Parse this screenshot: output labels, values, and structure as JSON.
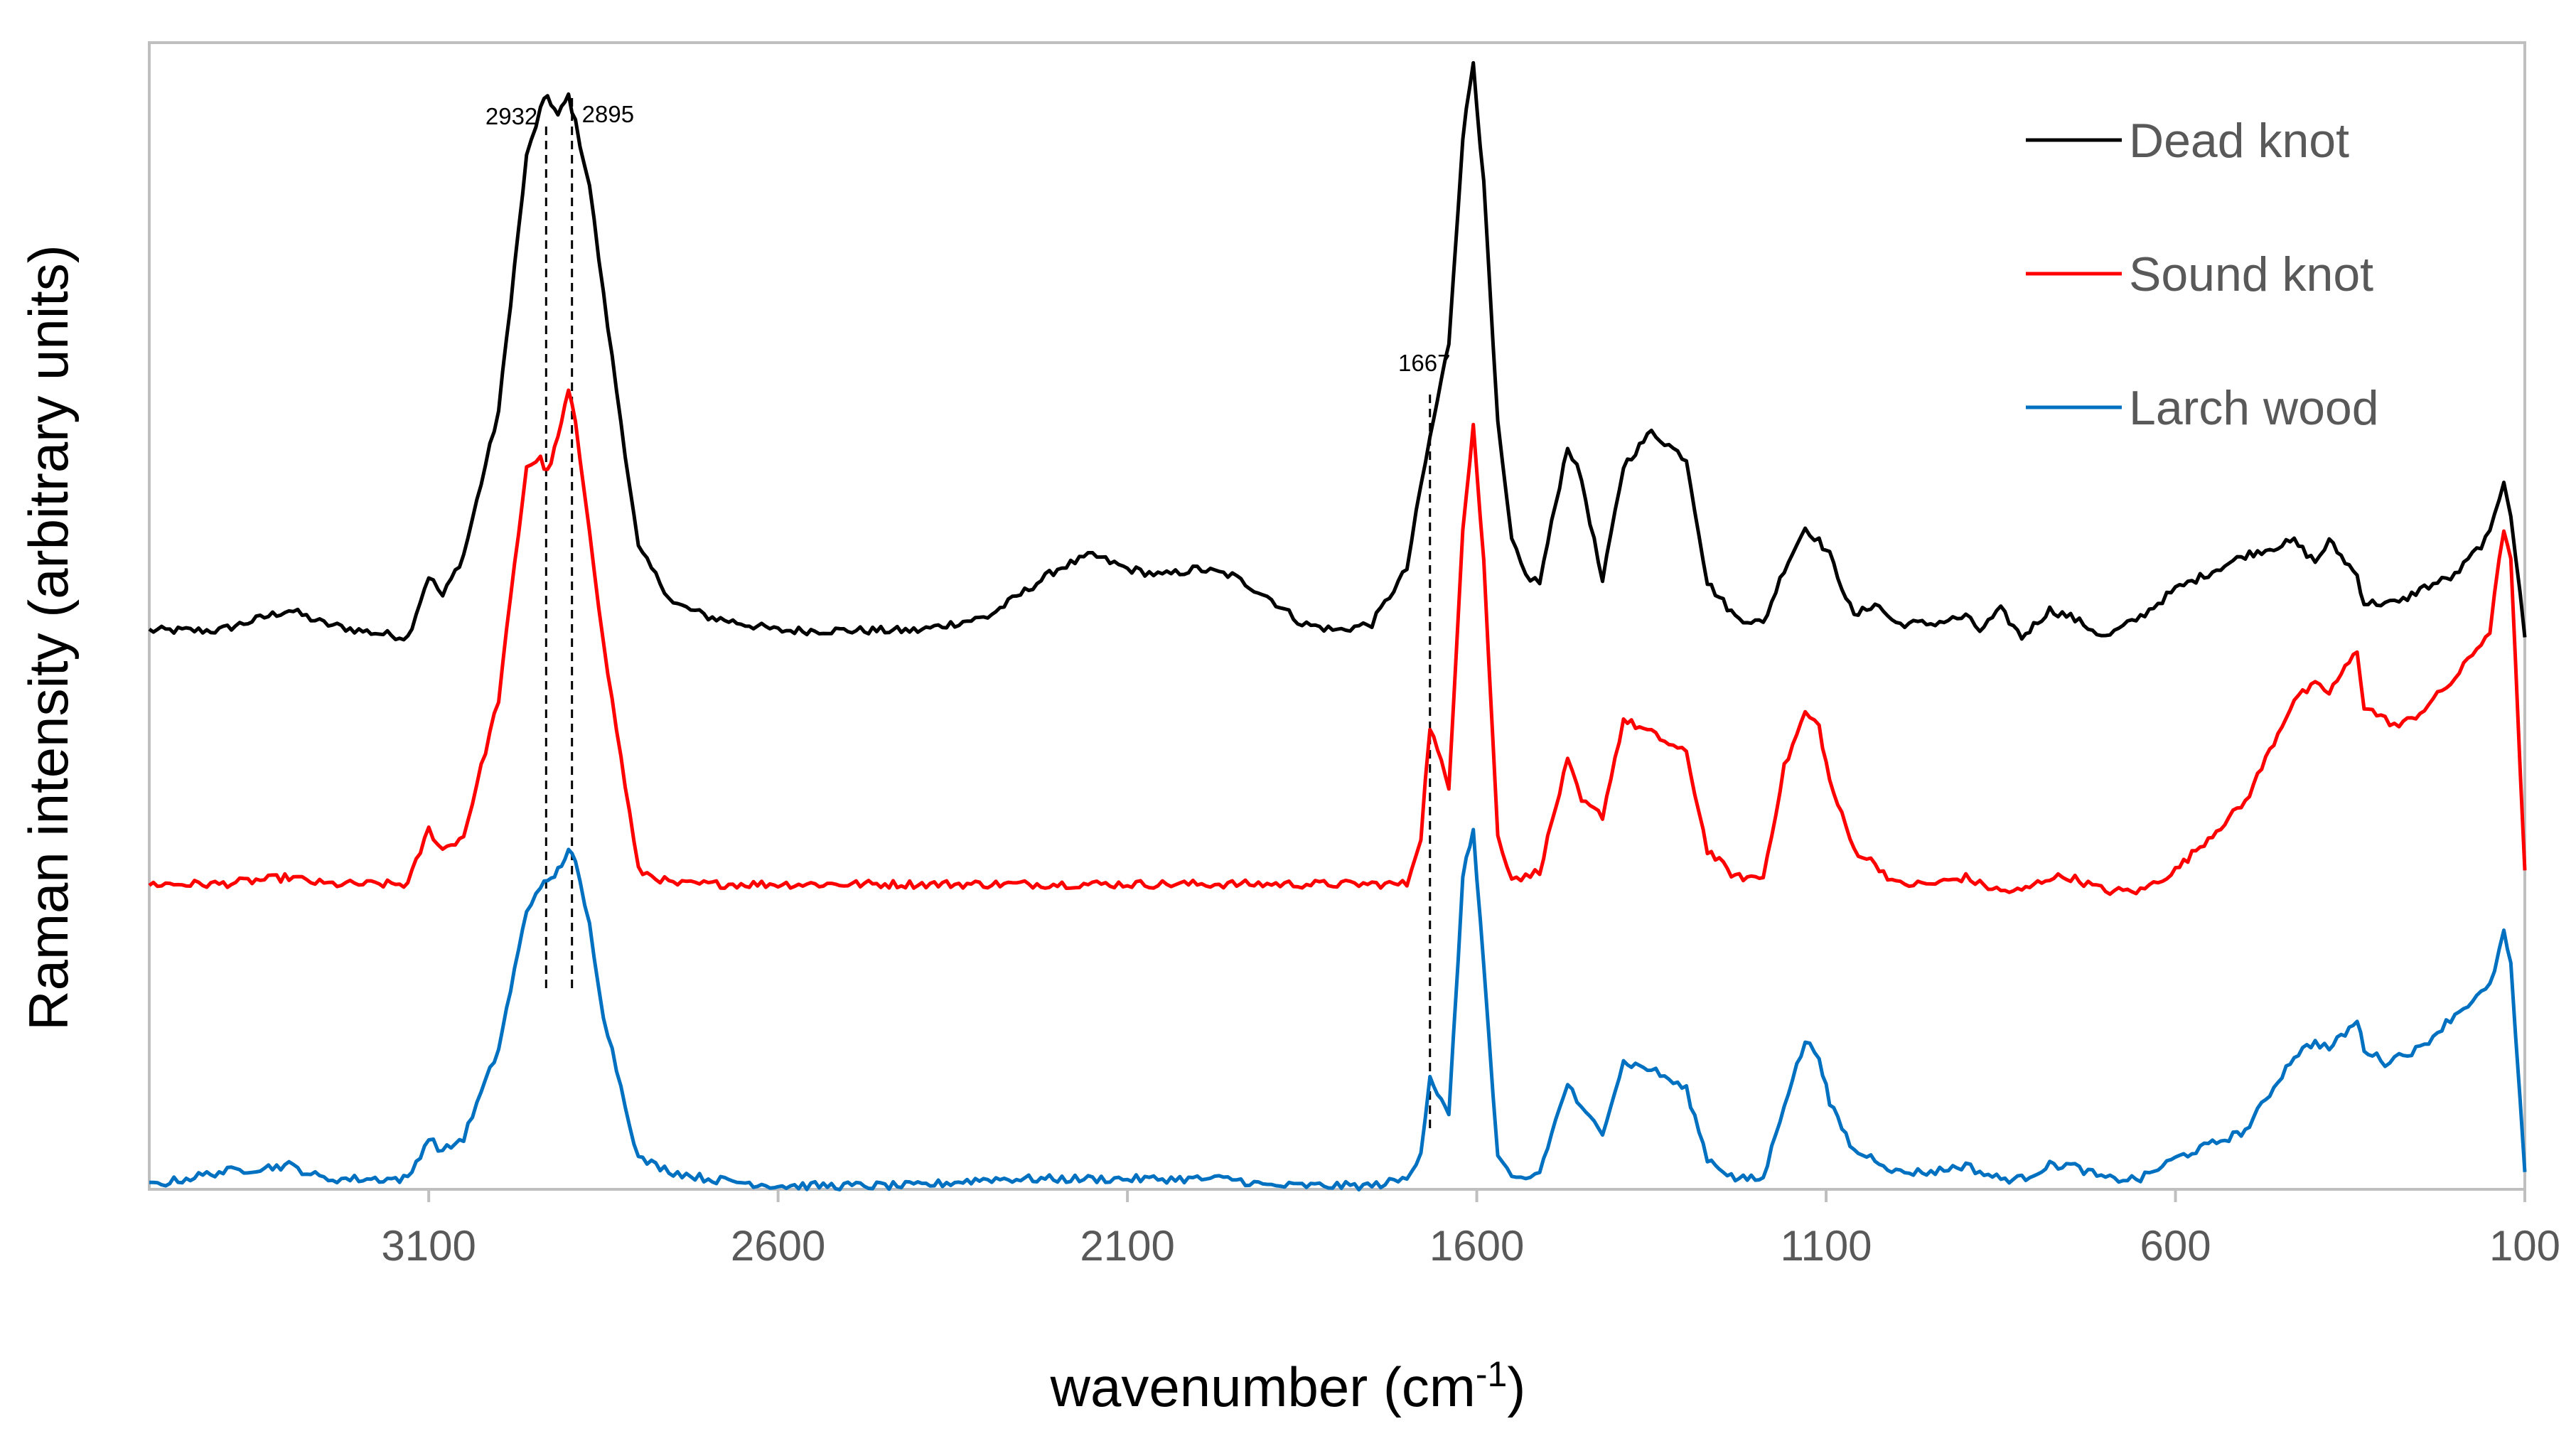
{
  "chart_data": {
    "type": "line",
    "title": "",
    "xlabel": "wavenumber (cm",
    "xlabel_superscript": "-1",
    "xlabel_suffix": ")",
    "ylabel": "Raman intensity (arbitrary units)",
    "xlim": [
      3500,
      100
    ],
    "x_reversed": true,
    "ylim": [
      0,
      1
    ],
    "y_ticks_visible": false,
    "x_ticks": [
      3100,
      2600,
      2100,
      1600,
      1100,
      600,
      100
    ],
    "x_tick_labels": [
      "3100",
      "2600",
      "2100",
      "1600",
      "1100",
      "600",
      "100"
    ],
    "grid": false,
    "legend_position": "top-right",
    "series": [
      {
        "name": "Dead knot",
        "color": "#000000",
        "x": [
          3500,
          3400,
          3300,
          3250,
          3200,
          3130,
          3100,
          3080,
          3050,
          3000,
          2960,
          2940,
          2930,
          2915,
          2900,
          2890,
          2870,
          2850,
          2800,
          2750,
          2700,
          2600,
          2500,
          2400,
          2300,
          2200,
          2150,
          2100,
          2050,
          2000,
          1950,
          1900,
          1850,
          1800,
          1750,
          1700,
          1680,
          1667,
          1640,
          1620,
          1605,
          1590,
          1570,
          1550,
          1530,
          1510,
          1470,
          1450,
          1420,
          1390,
          1350,
          1300,
          1270,
          1230,
          1190,
          1160,
          1130,
          1110,
          1095,
          1060,
          1030,
          1000,
          950,
          900,
          880,
          850,
          820,
          780,
          750,
          700,
          650,
          600,
          500,
          430,
          400,
          380,
          340,
          330,
          300,
          280,
          250,
          200,
          150,
          130,
          120,
          100
        ],
        "y": [
          0.03,
          0.03,
          0.06,
          0.04,
          0.03,
          0.02,
          0.11,
          0.08,
          0.14,
          0.35,
          0.72,
          0.79,
          0.81,
          0.78,
          0.81,
          0.77,
          0.68,
          0.52,
          0.15,
          0.07,
          0.05,
          0.03,
          0.03,
          0.03,
          0.05,
          0.12,
          0.14,
          0.12,
          0.11,
          0.12,
          0.11,
          0.08,
          0.04,
          0.03,
          0.04,
          0.12,
          0.24,
          0.31,
          0.45,
          0.75,
          0.86,
          0.68,
          0.33,
          0.16,
          0.11,
          0.1,
          0.3,
          0.25,
          0.1,
          0.27,
          0.32,
          0.28,
          0.1,
          0.05,
          0.04,
          0.12,
          0.18,
          0.16,
          0.14,
          0.05,
          0.07,
          0.04,
          0.04,
          0.05,
          0.03,
          0.06,
          0.02,
          0.06,
          0.05,
          0.02,
          0.05,
          0.09,
          0.14,
          0.16,
          0.13,
          0.16,
          0.11,
          0.07,
          0.07,
          0.07,
          0.09,
          0.11,
          0.17,
          0.25,
          0.2,
          0.02
        ]
      },
      {
        "name": "Sound knot",
        "color": "#ff0000",
        "x": [
          3500,
          3400,
          3300,
          3250,
          3200,
          3130,
          3100,
          3080,
          3050,
          3000,
          2960,
          2940,
          2930,
          2915,
          2900,
          2890,
          2870,
          2850,
          2800,
          2750,
          2700,
          2600,
          2500,
          2400,
          2300,
          2200,
          2150,
          2100,
          2050,
          2000,
          1950,
          1900,
          1850,
          1800,
          1750,
          1700,
          1680,
          1667,
          1640,
          1620,
          1605,
          1590,
          1570,
          1550,
          1530,
          1510,
          1470,
          1450,
          1420,
          1390,
          1350,
          1300,
          1270,
          1230,
          1190,
          1160,
          1130,
          1110,
          1095,
          1060,
          1030,
          1000,
          950,
          900,
          880,
          850,
          820,
          780,
          750,
          700,
          650,
          600,
          500,
          430,
          400,
          380,
          340,
          330,
          300,
          280,
          250,
          200,
          150,
          130,
          120,
          100
        ],
        "y": [
          0.03,
          0.03,
          0.04,
          0.03,
          0.03,
          0.03,
          0.11,
          0.08,
          0.1,
          0.3,
          0.64,
          0.65,
          0.63,
          0.68,
          0.75,
          0.7,
          0.55,
          0.38,
          0.05,
          0.03,
          0.03,
          0.03,
          0.03,
          0.03,
          0.03,
          0.03,
          0.03,
          0.03,
          0.03,
          0.03,
          0.03,
          0.03,
          0.03,
          0.03,
          0.03,
          0.03,
          0.1,
          0.26,
          0.17,
          0.55,
          0.7,
          0.5,
          0.1,
          0.04,
          0.04,
          0.05,
          0.21,
          0.15,
          0.13,
          0.27,
          0.25,
          0.22,
          0.08,
          0.04,
          0.04,
          0.2,
          0.28,
          0.26,
          0.18,
          0.08,
          0.06,
          0.03,
          0.03,
          0.04,
          0.03,
          0.02,
          0.02,
          0.04,
          0.04,
          0.02,
          0.02,
          0.05,
          0.15,
          0.3,
          0.32,
          0.31,
          0.37,
          0.29,
          0.27,
          0.26,
          0.28,
          0.33,
          0.4,
          0.55,
          0.5,
          0.05
        ]
      },
      {
        "name": "Larch wood",
        "color": "#0070c0",
        "x": [
          3500,
          3400,
          3300,
          3250,
          3200,
          3130,
          3100,
          3080,
          3050,
          3000,
          2960,
          2940,
          2930,
          2915,
          2900,
          2890,
          2870,
          2850,
          2800,
          2750,
          2700,
          2600,
          2500,
          2400,
          2300,
          2200,
          2150,
          2100,
          2050,
          2000,
          1950,
          1900,
          1850,
          1800,
          1750,
          1700,
          1680,
          1667,
          1640,
          1620,
          1605,
          1590,
          1570,
          1550,
          1530,
          1510,
          1470,
          1450,
          1420,
          1390,
          1350,
          1300,
          1270,
          1230,
          1190,
          1160,
          1130,
          1110,
          1095,
          1060,
          1030,
          1000,
          950,
          900,
          880,
          850,
          820,
          780,
          750,
          700,
          650,
          600,
          500,
          430,
          400,
          380,
          340,
          330,
          300,
          280,
          250,
          200,
          150,
          130,
          120,
          100
        ],
        "y": [
          0.0,
          0.02,
          0.03,
          0.01,
          0.01,
          0.01,
          0.07,
          0.05,
          0.07,
          0.2,
          0.4,
          0.44,
          0.44,
          0.46,
          0.49,
          0.47,
          0.38,
          0.25,
          0.04,
          0.02,
          0.01,
          0.0,
          0.0,
          0.0,
          0.01,
          0.01,
          0.01,
          0.01,
          0.01,
          0.01,
          0.01,
          0.0,
          0.0,
          0.0,
          0.0,
          0.01,
          0.05,
          0.16,
          0.1,
          0.45,
          0.52,
          0.32,
          0.04,
          0.01,
          0.01,
          0.02,
          0.15,
          0.11,
          0.08,
          0.18,
          0.17,
          0.14,
          0.04,
          0.01,
          0.01,
          0.12,
          0.21,
          0.19,
          0.12,
          0.05,
          0.04,
          0.02,
          0.02,
          0.03,
          0.02,
          0.01,
          0.01,
          0.03,
          0.03,
          0.01,
          0.01,
          0.04,
          0.08,
          0.19,
          0.21,
          0.2,
          0.24,
          0.2,
          0.18,
          0.19,
          0.2,
          0.25,
          0.29,
          0.37,
          0.32,
          0.02
        ]
      }
    ],
    "series_offsets": [
      0.78,
      0.41,
      0.0
    ],
    "annotations": [
      {
        "text": "2932",
        "x": 2932
      },
      {
        "text": "2895",
        "x": 2895
      },
      {
        "text": "1667",
        "x": 1667
      }
    ]
  }
}
